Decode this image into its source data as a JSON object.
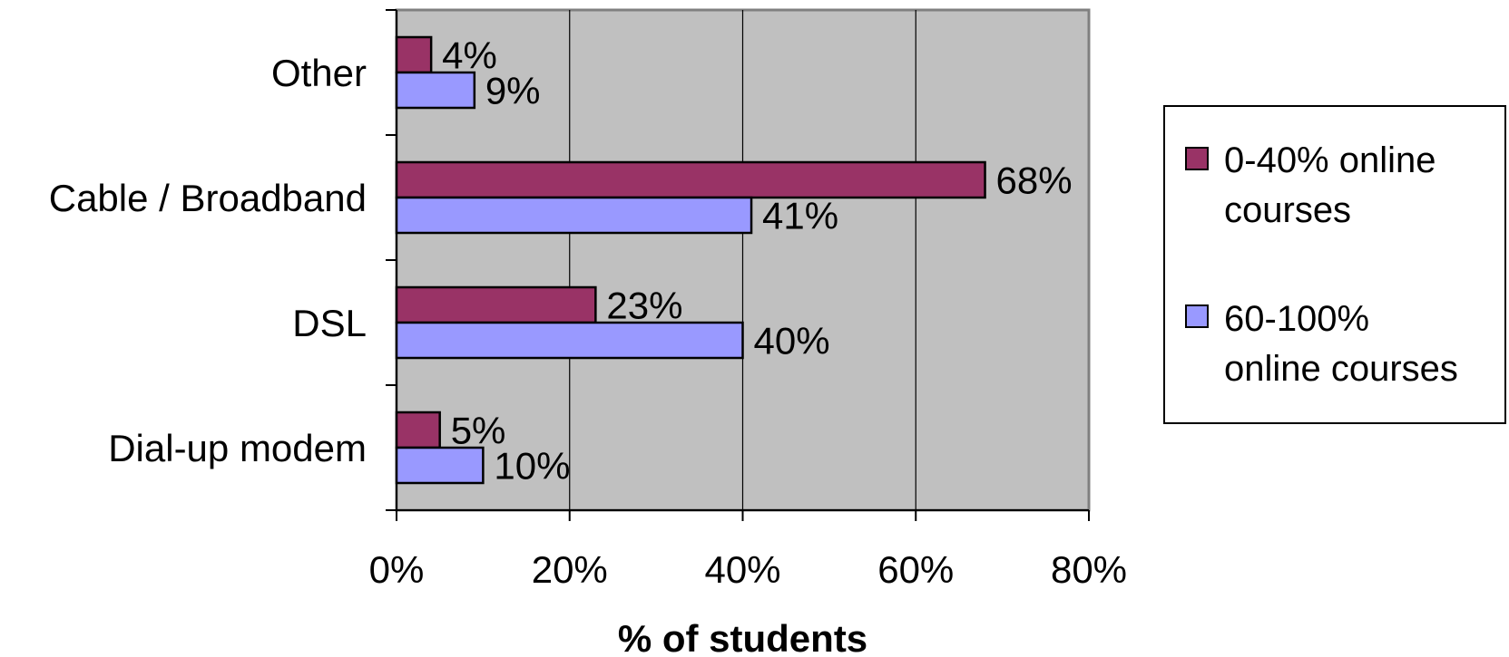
{
  "chart_data": {
    "type": "bar",
    "orientation": "horizontal",
    "categories": [
      "Dial-up modem",
      "DSL",
      "Cable / Broadband",
      "Other"
    ],
    "series": [
      {
        "name": "0-40% online courses",
        "color": "#993366",
        "values": [
          5,
          23,
          68,
          4
        ],
        "labels": [
          "5%",
          "23%",
          "68%",
          "4%"
        ]
      },
      {
        "name": "60-100% online courses",
        "color": "#9999ff",
        "values": [
          10,
          40,
          41,
          9
        ],
        "labels": [
          "10%",
          "40%",
          "41%",
          "9%"
        ]
      }
    ],
    "xlabel": "% of students",
    "xlim": [
      0,
      80
    ],
    "x_ticks": [
      "0%",
      "20%",
      "40%",
      "60%",
      "80%"
    ],
    "plot_background": "#c0c0c0",
    "grid": true,
    "legend_position": "right",
    "legend_entries": [
      [
        "0-40% online",
        "courses"
      ],
      [
        "60-100%",
        "online courses"
      ]
    ]
  }
}
